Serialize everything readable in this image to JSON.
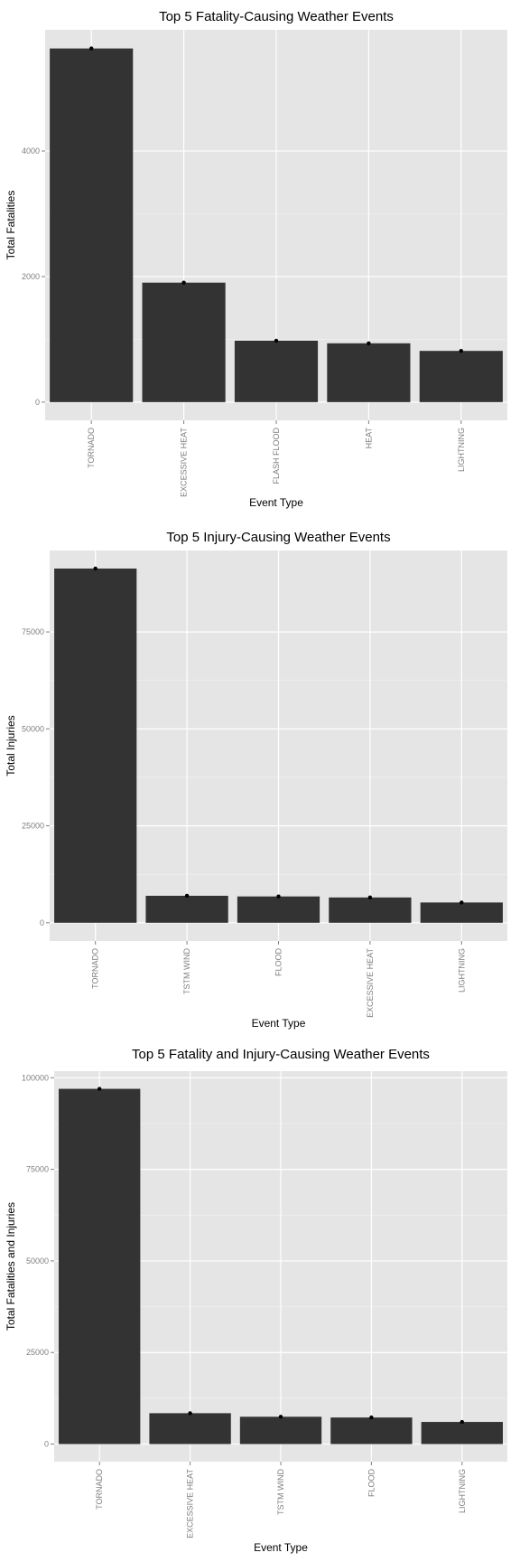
{
  "chart_data": [
    {
      "type": "bar",
      "title": "Top 5 Fatality-Causing Weather Events",
      "xlabel": "Event Type",
      "ylabel": "Total Fatalities",
      "categories": [
        "TORNADO",
        "EXCESSIVE HEAT",
        "FLASH FLOOD",
        "HEAT",
        "LIGHTNING"
      ],
      "values": [
        5633,
        1903,
        978,
        937,
        816
      ],
      "yticks": [
        0,
        2000,
        4000
      ],
      "ylim": [
        -290,
        5930
      ],
      "grid": true,
      "legend": "none"
    },
    {
      "type": "bar",
      "title": "Top 5 Injury-Causing Weather Events",
      "xlabel": "Event Type",
      "ylabel": "Total Injuries",
      "categories": [
        "TORNADO",
        "TSTM WIND",
        "FLOOD",
        "EXCESSIVE HEAT",
        "LIGHTNING"
      ],
      "values": [
        91346,
        6957,
        6789,
        6525,
        5230
      ],
      "yticks": [
        0,
        25000,
        50000,
        75000
      ],
      "ylim": [
        -4700,
        96000
      ],
      "grid": true,
      "legend": "none"
    },
    {
      "type": "bar",
      "title": "Top 5 Fatality and Injury-Causing Weather Events",
      "xlabel": "Event Type",
      "ylabel": "Total Fatalities and Injuries",
      "categories": [
        "TORNADO",
        "EXCESSIVE HEAT",
        "TSTM WIND",
        "FLOOD",
        "LIGHTNING"
      ],
      "values": [
        96979,
        8428,
        7461,
        7259,
        6046
      ],
      "yticks": [
        0,
        25000,
        50000,
        75000,
        100000
      ],
      "ylim": [
        -4800,
        101800
      ],
      "grid": true,
      "legend": "none"
    }
  ]
}
